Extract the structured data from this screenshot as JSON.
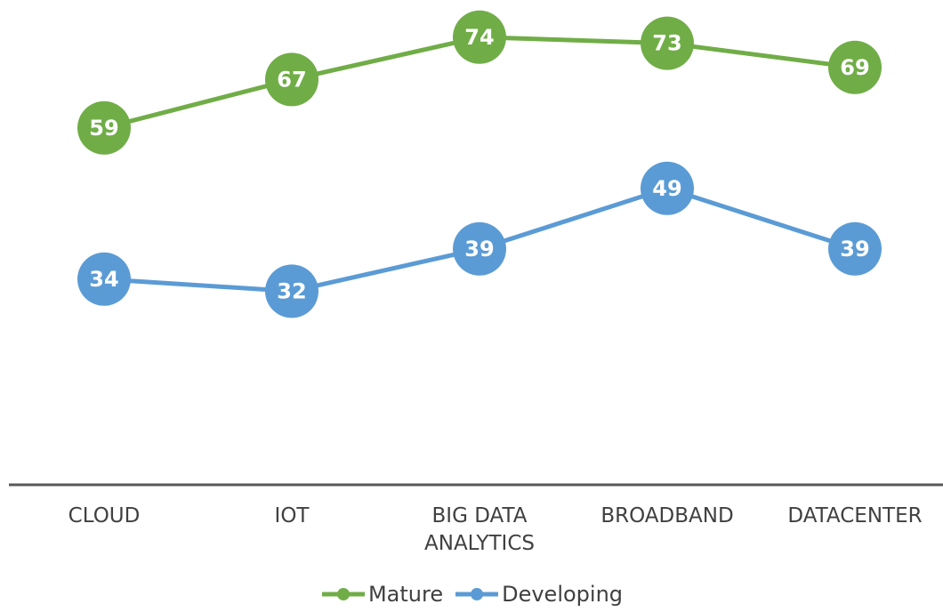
{
  "chart_data": {
    "type": "line",
    "categories": [
      "CLOUD",
      "IOT",
      "BIG DATA ANALYTICS",
      "BROADBAND",
      "DATACENTER"
    ],
    "series": [
      {
        "name": "Mature",
        "color": "#70ad47",
        "values": [
          59,
          67,
          74,
          73,
          69
        ]
      },
      {
        "name": "Developing",
        "color": "#5b9bd5",
        "values": [
          34,
          32,
          39,
          49,
          39
        ]
      }
    ],
    "ylim": [
      0,
      80
    ],
    "data_labels": true,
    "legend": "bottom"
  }
}
